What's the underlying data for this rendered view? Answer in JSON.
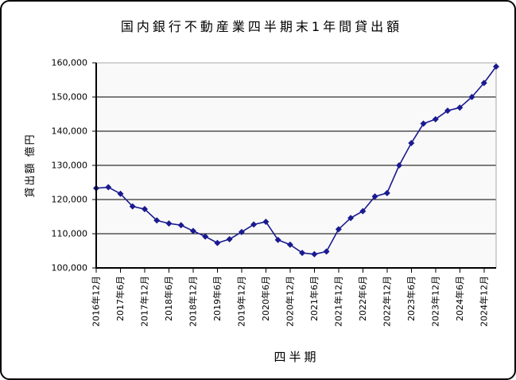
{
  "window": {
    "background": "#ffffff",
    "outer_border_color": "#000000"
  },
  "colors": {
    "series": "#1a1a90",
    "gridline": "#000000",
    "axis": "#000000",
    "plot_border": "#a8a8a8",
    "plot_background": "#f9f9f9",
    "text": "#000000"
  },
  "chart_data": {
    "type": "line",
    "title": "国内銀行不動産業四半期末1年間貸出額",
    "xlabel": "四半期",
    "ylabel": "貸出額 億円",
    "ylim": [
      100000,
      160000
    ],
    "ytick_step": 10000,
    "grid": "horizontal-black-lines",
    "legend": "none",
    "marker": "diamond",
    "category_label_interval": 2,
    "categories": [
      "2016年12月",
      "2017年3月",
      "2017年6月",
      "2017年9月",
      "2017年12月",
      "2018年3月",
      "2018年6月",
      "2018年9月",
      "2018年12月",
      "2019年3月",
      "2019年6月",
      "2019年9月",
      "2019年12月",
      "2020年3月",
      "2020年6月",
      "2020年9月",
      "2020年12月",
      "2021年3月",
      "2021年6月",
      "2021年9月",
      "2021年12月",
      "2022年3月",
      "2022年6月",
      "2022年9月",
      "2022年12月",
      "2023年3月",
      "2023年6月",
      "2023年9月",
      "2023年12月",
      "2024年3月",
      "2024年6月",
      "2024年9月",
      "2024年12月",
      "2025年3月"
    ],
    "values": [
      123300,
      123600,
      121700,
      118000,
      117200,
      113900,
      113000,
      112500,
      110800,
      109200,
      107300,
      108400,
      110500,
      112700,
      113500,
      108200,
      106800,
      104400,
      104000,
      104800,
      111300,
      114600,
      116600,
      120900,
      121900,
      130000,
      136500,
      142200,
      143500,
      146000,
      146900,
      150000,
      154100,
      158900
    ],
    "visible_x_tick_labels": [
      "2016年12月",
      "2017年6月",
      "2017年12月",
      "2018年6月",
      "2018年12月",
      "2019年6月",
      "2019年12月",
      "2020年6月",
      "2020年12月",
      "2021年6月",
      "2021年12月",
      "2022年6月",
      "2022年12月",
      "2023年6月",
      "2023年12月",
      "2024年6月",
      "2024年12月"
    ],
    "visible_y_tick_labels": [
      "100,000",
      "110,000",
      "120,000",
      "130,000",
      "140,000",
      "150,000",
      "160,000"
    ]
  }
}
